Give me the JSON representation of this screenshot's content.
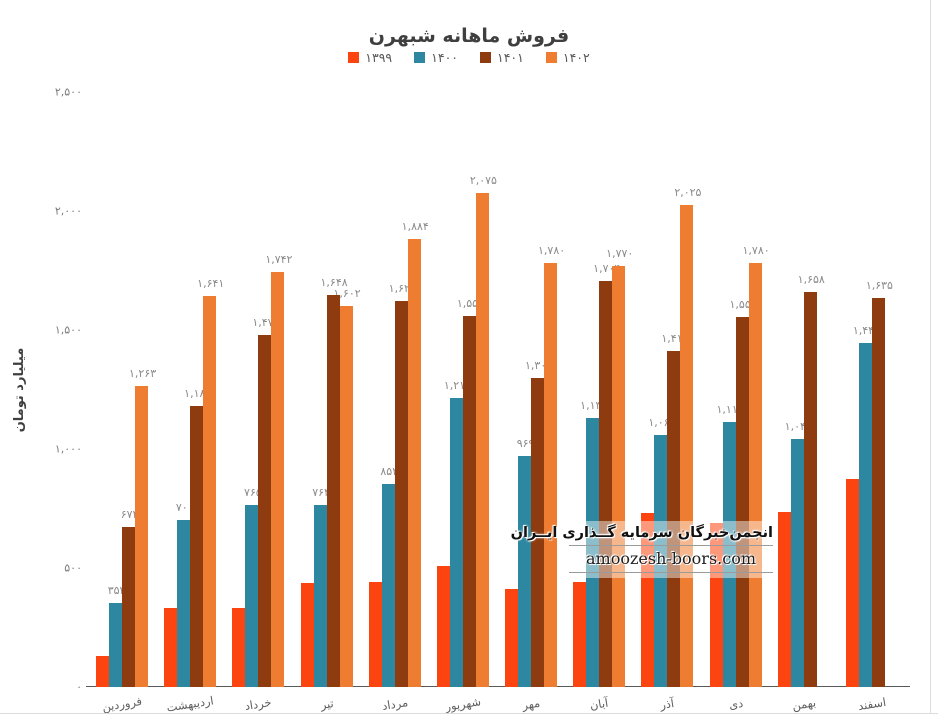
{
  "chart_data": {
    "type": "bar",
    "title": "فروش ماهانه شبهرن",
    "ylabel": "میلیارد تومان",
    "xlabel": "",
    "grid": false,
    "legend_position": "top",
    "ylim": [
      0,
      2500
    ],
    "ytick_values": [
      0,
      500,
      1000,
      1500,
      2000,
      2500
    ],
    "ytick_labels": [
      "۰",
      "۵۰۰",
      "۱,۰۰۰",
      "۱,۵۰۰",
      "۲,۰۰۰",
      "۲,۵۰۰"
    ],
    "categories": [
      "فروردین",
      "اردیبهشت",
      "خرداد",
      "تیر",
      "مرداد",
      "شهریور",
      "مهر",
      "آبان",
      "آذر",
      "دی",
      "بهمن",
      "اسفند"
    ],
    "series": [
      {
        "name": "۱۳۹۹",
        "color": "#fb4410",
        "values": [
          130,
          330,
          330,
          435,
          440,
          510,
          410,
          440,
          730,
          690,
          735,
          875
        ],
        "labels": [
          null,
          null,
          null,
          null,
          null,
          null,
          null,
          null,
          null,
          null,
          null,
          null
        ]
      },
      {
        "name": "۱۴۰۰",
        "color": "#2d87a0",
        "values": [
          354,
          700,
          765,
          764,
          853,
          1215,
          969,
          1131,
          1060,
          1115,
          1040,
          1445
        ],
        "labels": [
          "۳۵۴",
          "۷۰۰",
          "۷۶۵",
          "۷۶۴",
          "۸۵۳",
          "۱,۲۱۵",
          "۹۶۹",
          "۱,۱۳۱",
          "۱,۰۶۰",
          "۱,۱۱۵",
          "۱,۰۴۰",
          "۱,۴۴۵"
        ]
      },
      {
        "name": "۱۴۰۱",
        "color": "#8d3b0f",
        "values": [
          672,
          1182,
          1478,
          1648,
          1620,
          1557,
          1300,
          1704,
          1413,
          1553,
          1658,
          1635
        ],
        "labels": [
          "۶۷۲",
          "۱,۱۸۲",
          "۱,۴۷۸",
          "۱,۶۴۸",
          "۱,۶۲۰",
          "۱,۵۵۷",
          "۱,۳۰۰",
          "۱,۷۰۴",
          "۱,۴۱۳",
          "۱,۵۵۳",
          "۱,۶۵۸",
          "۱,۶۳۵"
        ]
      },
      {
        "name": "۱۴۰۲",
        "color": "#ee7d31",
        "values": [
          1263,
          1641,
          1742,
          1602,
          1884,
          2075,
          1780,
          1770,
          2025,
          1780,
          null,
          null
        ],
        "labels": [
          "۱,۲۶۳",
          "۱,۶۴۱",
          "۱,۷۴۲",
          "۱,۶۰۲",
          "۱,۸۸۴",
          "۲,۰۷۵",
          "۱,۷۸۰",
          "۱,۷۷۰",
          "۲,۰۲۵",
          "۱,۷۸۰",
          null,
          null
        ]
      }
    ]
  },
  "watermark": {
    "line1": "انجمن‌خبرگان سرمایه گــذاری ایــران",
    "line2": "amoozesh-boors.com"
  }
}
